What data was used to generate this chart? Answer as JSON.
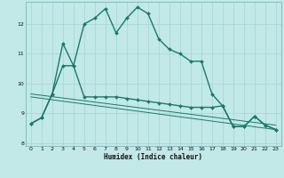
{
  "title": "",
  "xlabel": "Humidex (Indice chaleur)",
  "ylabel": "",
  "bg_color": "#c2e8e8",
  "line_color": "#1a7a6a",
  "grid_color": "#a8d8d8",
  "xlim": [
    -0.5,
    23.5
  ],
  "ylim": [
    7.9,
    12.75
  ],
  "xticks": [
    0,
    1,
    2,
    3,
    4,
    5,
    6,
    7,
    8,
    9,
    10,
    11,
    12,
    13,
    14,
    15,
    16,
    17,
    18,
    19,
    20,
    21,
    22,
    23
  ],
  "yticks": [
    8,
    9,
    10,
    11,
    12
  ],
  "series": [
    {
      "x": [
        0,
        1,
        2,
        3,
        4,
        5,
        6,
        7,
        8,
        9,
        10,
        11,
        12,
        13,
        14,
        15,
        16,
        17,
        18,
        19,
        20,
        21,
        22,
        23
      ],
      "y": [
        8.65,
        8.85,
        9.65,
        11.35,
        10.6,
        12.0,
        12.2,
        12.52,
        11.7,
        12.2,
        12.57,
        12.35,
        11.5,
        11.15,
        11.0,
        10.75,
        10.75,
        9.65,
        9.25,
        8.55,
        8.55,
        8.9,
        8.6,
        8.45
      ],
      "style": "-",
      "marker": "D",
      "markersize": 2.0,
      "linewidth": 1.0
    },
    {
      "x": [
        0,
        1,
        2,
        3,
        4,
        5,
        6,
        7,
        8,
        9,
        10,
        11,
        12,
        13,
        14,
        15,
        16,
        17,
        18,
        19,
        20,
        21,
        22,
        23
      ],
      "y": [
        8.65,
        8.85,
        9.65,
        10.6,
        10.6,
        9.55,
        9.55,
        9.55,
        9.55,
        9.5,
        9.45,
        9.4,
        9.35,
        9.3,
        9.25,
        9.2,
        9.2,
        9.2,
        9.25,
        8.55,
        8.55,
        8.9,
        8.6,
        8.45
      ],
      "style": "-",
      "marker": "D",
      "markersize": 2.0,
      "linewidth": 1.0
    },
    {
      "x": [
        0,
        23
      ],
      "y": [
        9.65,
        8.6
      ],
      "style": "-",
      "marker": null,
      "markersize": 0,
      "linewidth": 0.7
    },
    {
      "x": [
        0,
        23
      ],
      "y": [
        9.55,
        8.45
      ],
      "style": "-",
      "marker": null,
      "markersize": 0,
      "linewidth": 0.7
    }
  ]
}
